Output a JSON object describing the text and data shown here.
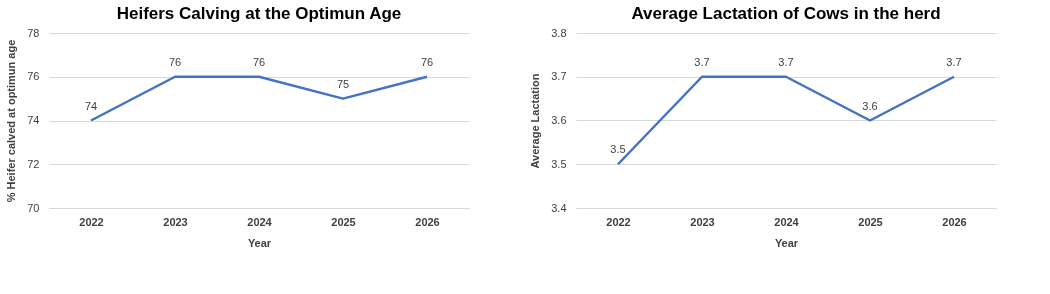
{
  "chart_data": [
    {
      "type": "line",
      "title": "Heifers Calving at the Optimun Age",
      "xlabel": "Year",
      "ylabel": "% Heifer calved at optimun age",
      "categories": [
        "2022",
        "2023",
        "2024",
        "2025",
        "2026"
      ],
      "values": [
        74,
        76,
        76,
        75,
        76
      ],
      "color": "#4472c4",
      "ylim": [
        70,
        78
      ],
      "yticks": [
        70,
        72,
        74,
        76,
        78
      ],
      "grid": "y",
      "data_labels": true
    },
    {
      "type": "line",
      "title": "Average Lactation of Cows in  the herd",
      "xlabel": "Year",
      "ylabel": "Average Lactation",
      "categories": [
        "2022",
        "2023",
        "2024",
        "2025",
        "2026"
      ],
      "values": [
        3.5,
        3.7,
        3.7,
        3.6,
        3.7
      ],
      "color": "#4472c4",
      "ylim": [
        3.4,
        3.8
      ],
      "yticks": [
        3.4,
        3.5,
        3.6,
        3.7,
        3.8
      ],
      "grid": "y",
      "data_labels": true
    }
  ]
}
